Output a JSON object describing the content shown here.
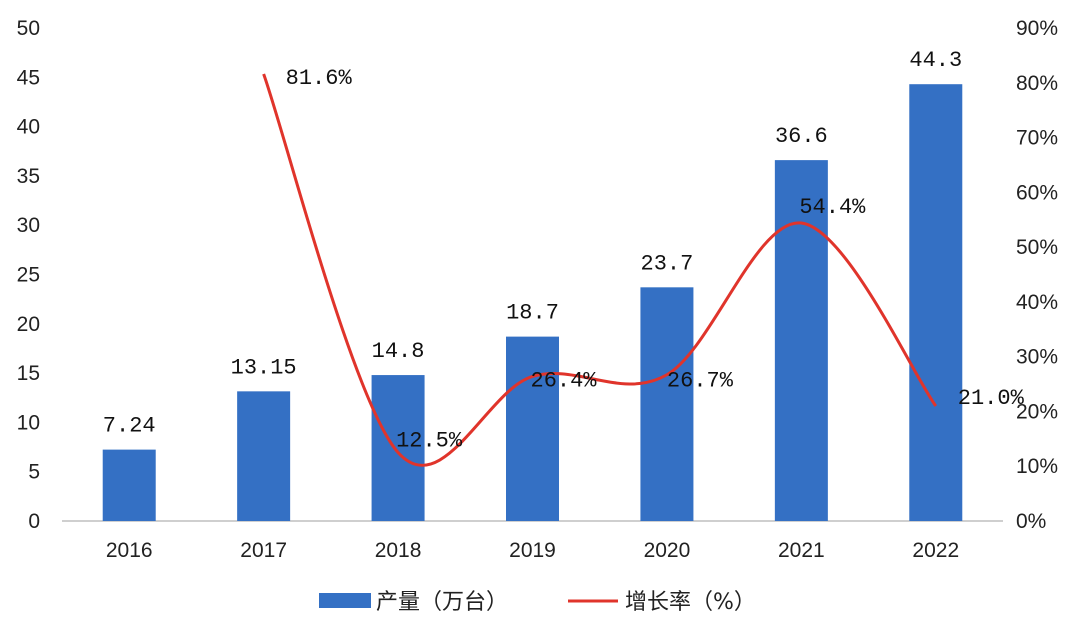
{
  "chart_data": {
    "type": "bar+line",
    "categories": [
      "2016",
      "2017",
      "2018",
      "2019",
      "2020",
      "2021",
      "2022"
    ],
    "series": [
      {
        "name": "产量（万台）",
        "type": "bar",
        "axis": "left",
        "color": "#3470c4",
        "values": [
          7.24,
          13.15,
          14.8,
          18.7,
          23.7,
          36.6,
          44.3
        ],
        "labels": [
          "7.24",
          "13.15",
          "14.8",
          "18.7",
          "23.7",
          "36.6",
          "44.3"
        ]
      },
      {
        "name": "增长率（%）",
        "type": "line",
        "axis": "right",
        "color": "#e0342b",
        "x": [
          "2017",
          "2018",
          "2019",
          "2020",
          "2021",
          "2022"
        ],
        "values": [
          81.6,
          12.5,
          26.4,
          26.7,
          54.4,
          21.0
        ],
        "labels": [
          "81.6%",
          "12.5%",
          "26.4%",
          "26.7%",
          "54.4%",
          "21.0%"
        ]
      }
    ],
    "y_left": {
      "min": 0,
      "max": 50,
      "step": 5,
      "ticks": [
        "0",
        "5",
        "10",
        "15",
        "20",
        "25",
        "30",
        "35",
        "40",
        "45",
        "50"
      ]
    },
    "y_right": {
      "min": 0,
      "max": 90,
      "step": 10,
      "ticks": [
        "0%",
        "10%",
        "20%",
        "30%",
        "40%",
        "50%",
        "60%",
        "70%",
        "80%",
        "90%"
      ]
    },
    "legend_position": "bottom-center",
    "grid": false
  }
}
